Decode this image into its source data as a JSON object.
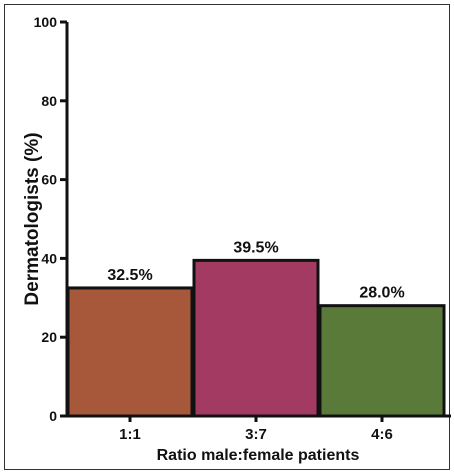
{
  "chart_data": {
    "type": "bar",
    "categories": [
      "1:1",
      "3:7",
      "4:6"
    ],
    "values": [
      32.5,
      39.5,
      28.0
    ],
    "data_labels": [
      "32.5%",
      "39.5%",
      "28.0%"
    ],
    "colors": [
      "#a8583a",
      "#a23a62",
      "#5a7a3a"
    ],
    "title": "",
    "xlabel": "Ratio male:female patients",
    "ylabel": "Dermatologists (%)",
    "ylim": [
      0,
      100
    ],
    "yticks": [
      0,
      20,
      40,
      60,
      80,
      100
    ],
    "grid": false,
    "legend": "none"
  }
}
